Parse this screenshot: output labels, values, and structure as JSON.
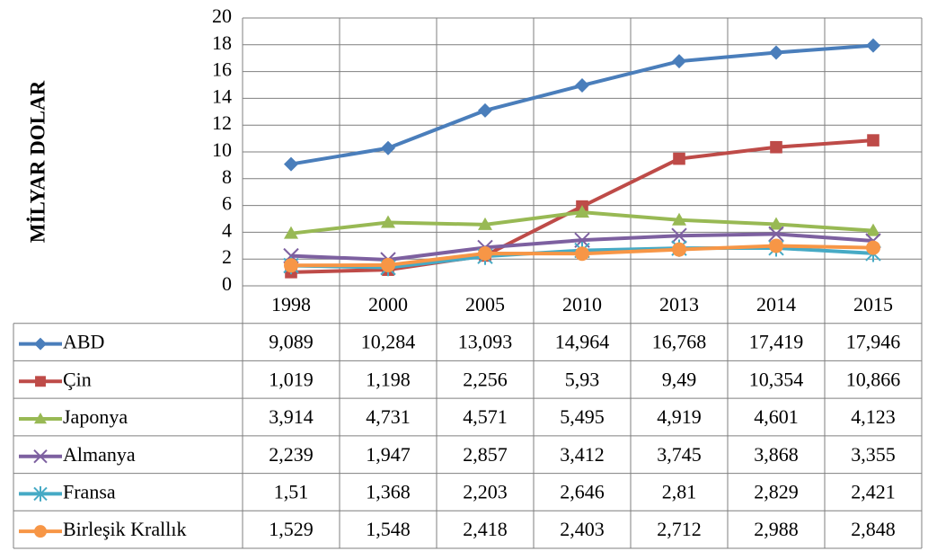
{
  "chart_data": {
    "type": "line",
    "y_label": "MİLYAR DOLAR",
    "categories": [
      "1998",
      "2000",
      "2005",
      "2010",
      "2013",
      "2014",
      "2015"
    ],
    "ylim": [
      0,
      20
    ],
    "yticks": [
      0,
      2,
      4,
      6,
      8,
      10,
      12,
      14,
      16,
      18,
      20
    ],
    "grid": true,
    "series": [
      {
        "name": "ABD",
        "color": "#4a7ebb",
        "marker": "diamond",
        "values": [
          9.089,
          10.284,
          13.093,
          14.964,
          16.768,
          17.419,
          17.946
        ],
        "value_labels": [
          "9,089",
          "10,284",
          "13,093",
          "14,964",
          "16,768",
          "17,419",
          "17,946"
        ]
      },
      {
        "name": "Çin",
        "color": "#be4b48",
        "marker": "square",
        "values": [
          1.019,
          1.198,
          2.256,
          5.93,
          9.49,
          10.354,
          10.866
        ],
        "value_labels": [
          "1,019",
          "1,198",
          "2,256",
          "5,93",
          "9,49",
          "10,354",
          "10,866"
        ]
      },
      {
        "name": "Japonya",
        "color": "#98b954",
        "marker": "triangle",
        "values": [
          3.914,
          4.731,
          4.571,
          5.495,
          4.919,
          4.601,
          4.123
        ],
        "value_labels": [
          "3,914",
          "4,731",
          "4,571",
          "5,495",
          "4,919",
          "4,601",
          "4,123"
        ]
      },
      {
        "name": "Almanya",
        "color": "#7d60a0",
        "marker": "x",
        "values": [
          2.239,
          1.947,
          2.857,
          3.412,
          3.745,
          3.868,
          3.355
        ],
        "value_labels": [
          "2,239",
          "1,947",
          "2,857",
          "3,412",
          "3,745",
          "3,868",
          "3,355"
        ]
      },
      {
        "name": "Fransa",
        "color": "#46aac5",
        "marker": "star",
        "values": [
          1.51,
          1.368,
          2.203,
          2.646,
          2.81,
          2.829,
          2.421
        ],
        "value_labels": [
          "1,51",
          "1,368",
          "2,203",
          "2,646",
          "2,81",
          "2,829",
          "2,421"
        ]
      },
      {
        "name": "Birleşik Krallık",
        "color": "#f79646",
        "marker": "circle",
        "values": [
          1.529,
          1.548,
          2.418,
          2.403,
          2.712,
          2.988,
          2.848
        ],
        "value_labels": [
          "1,529",
          "1,548",
          "2,418",
          "2,403",
          "2,712",
          "2,988",
          "2,848"
        ]
      }
    ]
  }
}
